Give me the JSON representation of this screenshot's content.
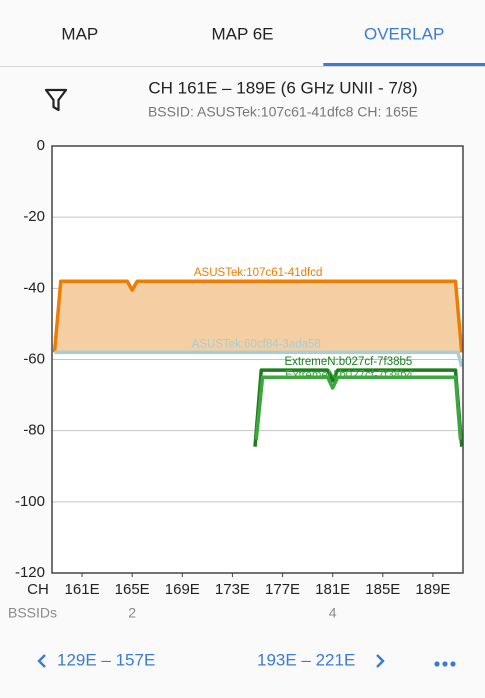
{
  "tabs": [
    {
      "label": "MAP",
      "active": false
    },
    {
      "label": "MAP 6E",
      "active": false
    },
    {
      "label": "OVERLAP",
      "active": true
    }
  ],
  "header": {
    "title": "CH 161E – 189E (6 GHz UNII - 7/8)",
    "subtitle": "BSSID: ASUSTek:107c61-41dfc8 CH: 165E"
  },
  "chart_data": {
    "type": "line",
    "xlabel": "CH",
    "xlim": [
      158.6,
      191.4
    ],
    "xticks": [
      {
        "value": 161,
        "label": "161E"
      },
      {
        "value": 165,
        "label": "165E"
      },
      {
        "value": 169,
        "label": "169E"
      },
      {
        "value": 173,
        "label": "173E"
      },
      {
        "value": 177,
        "label": "177E"
      },
      {
        "value": 181,
        "label": "181E"
      },
      {
        "value": 185,
        "label": "185E"
      },
      {
        "value": 189,
        "label": "189E"
      }
    ],
    "ylim": [
      -120,
      0
    ],
    "yticks": [
      0,
      -20,
      -40,
      -60,
      -80,
      -100,
      -120
    ],
    "grid": true,
    "series": [
      {
        "name": "ASUSTek:107c61-41dfcd",
        "color": "#ef7c00",
        "fill": "#f3cfa3",
        "x": [
          158.8,
          159.3,
          164.6,
          165,
          165.4,
          190.8,
          191.3
        ],
        "values": [
          -58,
          -38,
          -38,
          -40.5,
          -38,
          -38,
          -58
        ]
      },
      {
        "name": "ASUSTek:60cf84-3ada58",
        "color": "#a8cdd3",
        "x": [
          158.8,
          191.0,
          191.3
        ],
        "values": [
          -58,
          -58,
          -62
        ]
      },
      {
        "name": "ExtremeN:b027cf-7f38b5",
        "color": "#1b7d1b",
        "x": [
          174.8,
          175.3,
          180.6,
          181,
          181.4,
          190.8,
          191.3
        ],
        "values": [
          -84.5,
          -63,
          -63,
          -66,
          -63,
          -63,
          -84.5
        ]
      },
      {
        "name": "ExtremeN:b027cf-7f38b4",
        "color": "#3ea63e",
        "x": [
          174.9,
          175.4,
          180.6,
          181,
          181.4,
          190.8,
          191.2
        ],
        "values": [
          -82.5,
          -65,
          -65,
          -68,
          -65,
          -65,
          -82.5
        ]
      }
    ]
  },
  "bssids": {
    "label": "BSSIDs",
    "counts": [
      {
        "x": 165,
        "value": 2
      },
      {
        "x": 181,
        "value": 4
      }
    ]
  },
  "footer": {
    "previous": "129E – 157E",
    "next": "193E – 221E"
  }
}
